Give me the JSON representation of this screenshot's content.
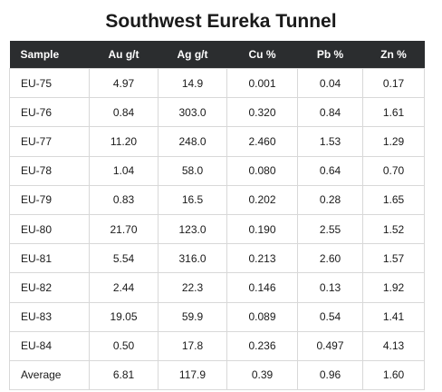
{
  "title": "Southwest Eureka Tunnel",
  "table": {
    "headers": [
      "Sample",
      "Au g/t",
      "Ag g/t",
      "Cu %",
      "Pb %",
      "Zn %"
    ],
    "rows": [
      [
        "EU-75",
        "4.97",
        "14.9",
        "0.001",
        "0.04",
        "0.17"
      ],
      [
        "EU-76",
        "0.84",
        "303.0",
        "0.320",
        "0.84",
        "1.61"
      ],
      [
        "EU-77",
        "11.20",
        "248.0",
        "2.460",
        "1.53",
        "1.29"
      ],
      [
        "EU-78",
        "1.04",
        "58.0",
        "0.080",
        "0.64",
        "0.70"
      ],
      [
        "EU-79",
        "0.83",
        "16.5",
        "0.202",
        "0.28",
        "1.65"
      ],
      [
        "EU-80",
        "21.70",
        "123.0",
        "0.190",
        "2.55",
        "1.52"
      ],
      [
        "EU-81",
        "5.54",
        "316.0",
        "0.213",
        "2.60",
        "1.57"
      ],
      [
        "EU-82",
        "2.44",
        "22.3",
        "0.146",
        "0.13",
        "1.92"
      ],
      [
        "EU-83",
        "19.05",
        "59.9",
        "0.089",
        "0.54",
        "1.41"
      ],
      [
        "EU-84",
        "0.50",
        "17.8",
        "0.236",
        "0.497",
        "4.13"
      ],
      [
        "Average",
        "6.81",
        "117.9",
        "0.39",
        "0.96",
        "1.60"
      ]
    ]
  },
  "colors": {
    "header_background": "#2b2d2f",
    "header_text": "#ffffff",
    "cell_border": "#d8d8d8"
  }
}
